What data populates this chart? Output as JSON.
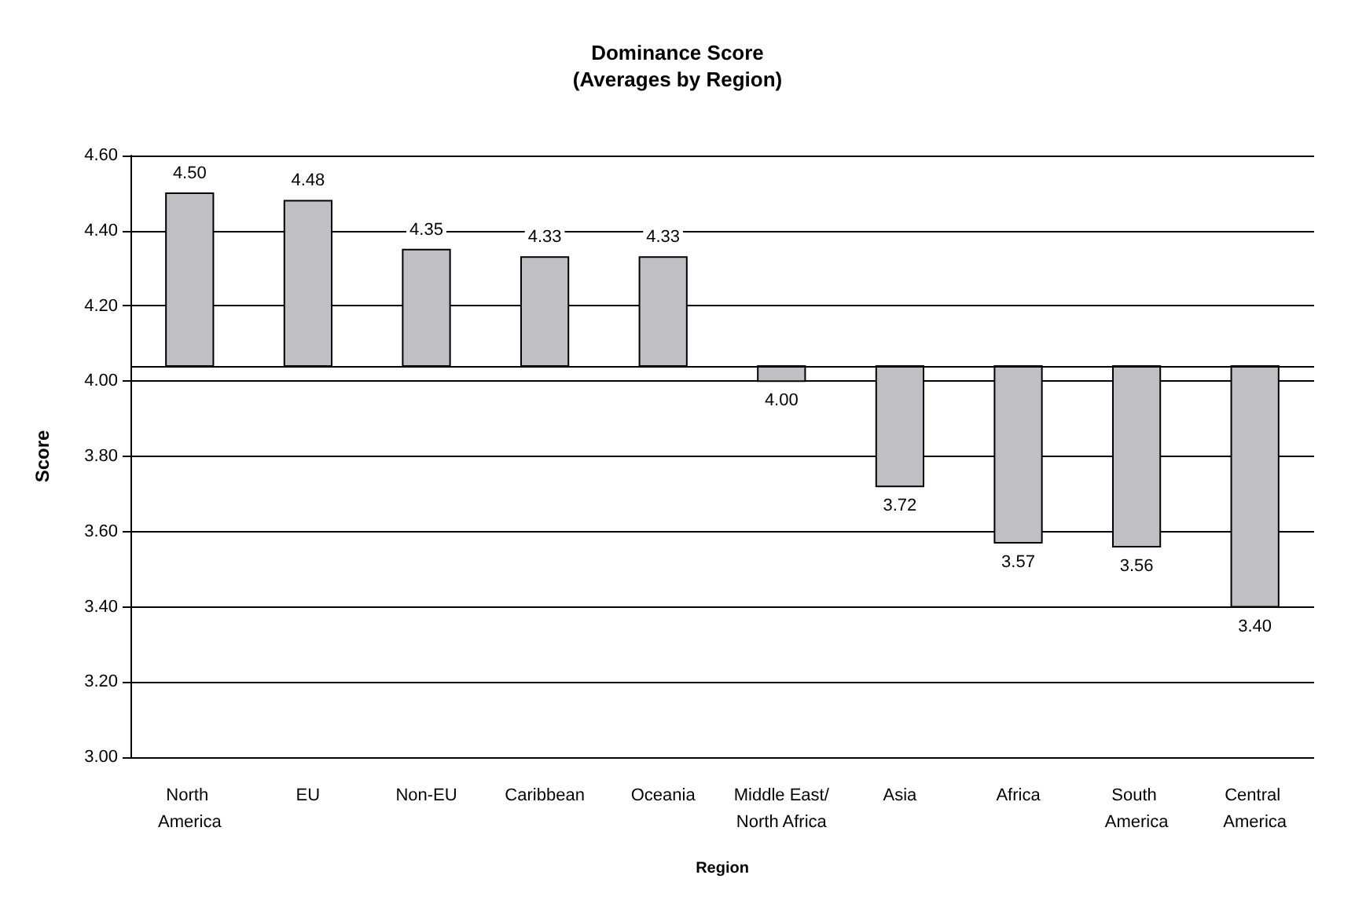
{
  "chart_data": {
    "type": "bar",
    "title": "Dominance Score\n(Averages by Region)",
    "xlabel": "Region",
    "ylabel": "Score",
    "categories": [
      "North America",
      "EU",
      "Non-EU",
      "Caribbean",
      "Oceania",
      "Middle East/North Africa",
      "Asia",
      "Africa",
      "South America",
      "Central America"
    ],
    "base": [
      4.04,
      4.04,
      4.04,
      4.04,
      4.04,
      4.04,
      4.04,
      4.04,
      4.04,
      4.04
    ],
    "values": [
      0.46,
      0.44,
      0.31,
      0.29,
      0.29,
      -0.04,
      -0.32,
      -0.47,
      -0.48,
      -0.64
    ],
    "value_labels": [
      "4.50",
      "4.48",
      "4.35",
      "4.33",
      "4.33",
      "4.00",
      "3.72",
      "3.57",
      "3.56",
      "3.40"
    ],
    "color": "#c0c0c4",
    "ylim": [
      3,
      4.6
    ],
    "yticks": [
      {
        "value": 3,
        "label": "3.00"
      },
      {
        "value": 3.2,
        "label": "3.20"
      },
      {
        "value": 3.4,
        "label": "3.40"
      },
      {
        "value": 3.6,
        "label": "3.60"
      },
      {
        "value": 3.8,
        "label": "3.80"
      },
      {
        "value": 4,
        "label": "4.00"
      },
      {
        "value": 4.2,
        "label": "4.20"
      },
      {
        "value": 4.4,
        "label": "4.40"
      },
      {
        "value": 4.6,
        "label": "4.60"
      }
    ],
    "ref_lines": [
      {
        "axis": "y",
        "value": 4.04,
        "color": "#000000"
      }
    ],
    "grid": "y"
  }
}
